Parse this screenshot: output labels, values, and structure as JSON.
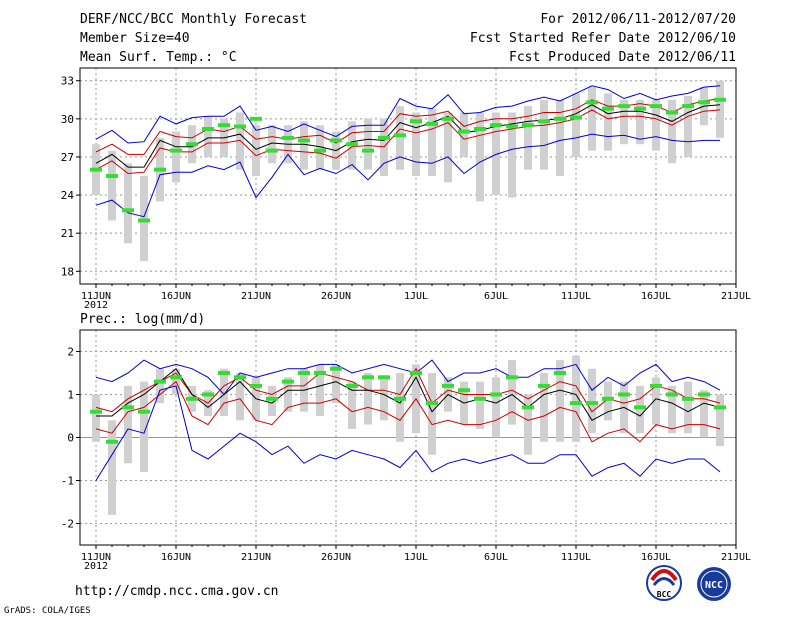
{
  "header": {
    "title": "DERF/NCC/BCC Monthly Forecast",
    "member_size": "Member Size=40",
    "variable": "Mean Surf. Temp.: °C",
    "period": "For 2012/06/11-2012/07/20",
    "start_date": "Fcst Started Refer Date 2012/06/10",
    "produced_date": "Fcst Produced Date 2012/06/11"
  },
  "x_ticks": [
    "11JUN",
    "16JUN",
    "21JUN",
    "26JUN",
    "1JUL",
    "6JUL",
    "11JUL",
    "16JUL",
    "21JUL"
  ],
  "x_year": "2012",
  "footer": {
    "url": "http://cmdp.ncc.cma.gov.cn",
    "credit": "GrADS: COLA/IGES",
    "logo_bcc": "BCC",
    "logo_ncc": "NCC"
  },
  "colors": {
    "upper_lower": "#0000cc",
    "spread": "#cc0000",
    "mean": "#000000",
    "box": "#d0d0d0",
    "median": "#33dd33"
  },
  "chart_data": [
    {
      "type": "line",
      "title": "Mean Surf. Temp.: °C",
      "xlabel": "",
      "ylabel": "",
      "ylim": [
        17,
        34
      ],
      "yticks": [
        18,
        21,
        24,
        27,
        30,
        33
      ],
      "days": 40,
      "grid": true,
      "series": [
        {
          "name": "upper",
          "values": [
            28.4,
            29.1,
            28.1,
            28.2,
            30.2,
            29.6,
            30.1,
            30.2,
            30.2,
            31.0,
            29.1,
            29.4,
            29.0,
            29.6,
            29.1,
            28.6,
            29.4,
            29.5,
            29.5,
            31.6,
            31.0,
            30.8,
            31.9,
            30.4,
            30.5,
            30.9,
            31.0,
            31.4,
            31.7,
            31.4,
            32.0,
            32.6,
            32.3,
            31.6,
            32.0,
            31.5,
            31.8,
            32.0,
            32.5,
            32.6
          ]
        },
        {
          "name": "spread_high",
          "values": [
            27.4,
            28.0,
            27.2,
            27.2,
            29.0,
            28.6,
            28.5,
            29.2,
            29.0,
            29.4,
            28.4,
            28.6,
            28.4,
            28.6,
            28.7,
            28.1,
            28.9,
            29.0,
            29.0,
            30.4,
            30.2,
            30.3,
            30.6,
            29.4,
            29.8,
            30.0,
            30.0,
            30.2,
            30.5,
            30.5,
            30.8,
            31.5,
            31.0,
            31.0,
            31.2,
            31.0,
            30.5,
            31.1,
            31.4,
            31.6
          ]
        },
        {
          "name": "mean",
          "values": [
            26.5,
            27.2,
            26.2,
            26.2,
            28.3,
            27.8,
            27.8,
            28.5,
            28.5,
            28.8,
            27.6,
            28.1,
            28.0,
            28.0,
            27.8,
            27.5,
            28.2,
            28.4,
            28.3,
            29.7,
            29.3,
            29.7,
            30.2,
            28.9,
            29.1,
            29.4,
            29.6,
            29.8,
            29.9,
            30.0,
            30.4,
            31.1,
            30.4,
            30.6,
            30.6,
            30.3,
            29.8,
            30.5,
            31.0,
            31.1
          ]
        },
        {
          "name": "spread_low",
          "values": [
            26.0,
            26.7,
            25.7,
            25.8,
            27.7,
            27.4,
            27.4,
            28.1,
            28.1,
            28.3,
            27.1,
            27.6,
            27.5,
            27.4,
            27.3,
            26.9,
            27.8,
            27.9,
            27.8,
            29.2,
            28.9,
            29.2,
            29.7,
            28.4,
            28.7,
            29.0,
            29.2,
            29.4,
            29.5,
            29.7,
            30.0,
            30.7,
            30.0,
            30.2,
            30.2,
            30.0,
            29.5,
            30.2,
            30.6,
            30.7
          ]
        },
        {
          "name": "lower",
          "values": [
            23.2,
            23.6,
            22.6,
            22.3,
            25.6,
            25.8,
            25.8,
            26.3,
            26.0,
            26.6,
            23.8,
            25.4,
            27.2,
            25.6,
            26.1,
            25.7,
            26.4,
            25.2,
            26.5,
            27.0,
            26.6,
            26.5,
            27.0,
            25.7,
            26.6,
            27.2,
            27.6,
            27.8,
            27.9,
            28.3,
            28.5,
            28.8,
            28.6,
            28.7,
            28.4,
            28.6,
            28.3,
            28.2,
            28.3,
            28.3
          ]
        }
      ],
      "boxes": [
        [
          24.0,
          28.0
        ],
        [
          22.0,
          27.5
        ],
        [
          20.2,
          26.5
        ],
        [
          18.8,
          25.5
        ],
        [
          23.5,
          28.5
        ],
        [
          25.0,
          29.0
        ],
        [
          26.5,
          29.5
        ],
        [
          27.0,
          30.2
        ],
        [
          27.0,
          30.0
        ],
        [
          26.0,
          30.5
        ],
        [
          25.5,
          29.5
        ],
        [
          26.5,
          29.5
        ],
        [
          26.5,
          29.5
        ],
        [
          26.0,
          29.8
        ],
        [
          26.0,
          29.5
        ],
        [
          26.0,
          29.0
        ],
        [
          26.0,
          29.8
        ],
        [
          26.0,
          30.0
        ],
        [
          25.5,
          30.0
        ],
        [
          26.0,
          31.0
        ],
        [
          25.5,
          30.5
        ],
        [
          25.5,
          30.8
        ],
        [
          25.0,
          30.5
        ],
        [
          27.0,
          30.5
        ],
        [
          23.5,
          30.5
        ],
        [
          24.0,
          30.5
        ],
        [
          23.8,
          30.5
        ],
        [
          26.0,
          31.0
        ],
        [
          26.0,
          31.5
        ],
        [
          25.5,
          31.5
        ],
        [
          27.0,
          32.0
        ],
        [
          27.5,
          32.5
        ],
        [
          27.5,
          32.0
        ],
        [
          28.0,
          31.5
        ],
        [
          28.0,
          31.5
        ],
        [
          27.5,
          31.5
        ],
        [
          26.5,
          31.5
        ],
        [
          27.0,
          31.8
        ],
        [
          29.5,
          32.5
        ],
        [
          28.5,
          33.0
        ]
      ],
      "medians": [
        26.0,
        25.5,
        22.8,
        22.0,
        26.0,
        27.5,
        28.0,
        29.2,
        29.5,
        29.4,
        30.0,
        27.5,
        28.5,
        28.3,
        27.5,
        28.3,
        28.0,
        27.5,
        28.5,
        28.7,
        29.8,
        29.6,
        30.0,
        29.0,
        29.2,
        29.5,
        29.4,
        29.5,
        29.8,
        30.0,
        30.1,
        31.3,
        30.8,
        31.0,
        30.8,
        31.0,
        30.5,
        31.0,
        31.3,
        31.5
      ]
    },
    {
      "type": "line",
      "title": "Prec.: log(mm/d)",
      "xlabel": "",
      "ylabel": "",
      "ylim": [
        -2.5,
        2.5
      ],
      "yticks": [
        -2,
        -1,
        0,
        1,
        2
      ],
      "days": 40,
      "grid": true,
      "series": [
        {
          "name": "upper",
          "values": [
            1.4,
            1.3,
            1.5,
            1.8,
            1.6,
            1.7,
            1.6,
            1.4,
            1.0,
            1.5,
            1.4,
            1.5,
            1.6,
            1.6,
            1.7,
            1.7,
            1.5,
            1.6,
            1.7,
            1.6,
            1.5,
            1.8,
            1.3,
            1.5,
            1.5,
            1.6,
            1.4,
            1.4,
            1.6,
            1.6,
            1.7,
            1.1,
            1.4,
            1.2,
            1.5,
            1.7,
            1.3,
            1.4,
            1.3,
            1.1
          ]
        },
        {
          "name": "spread_high",
          "values": [
            0.7,
            0.6,
            0.9,
            1.1,
            1.3,
            1.5,
            1.0,
            0.8,
            1.2,
            1.4,
            1.1,
            1.0,
            1.2,
            1.2,
            1.5,
            1.4,
            1.3,
            1.1,
            1.1,
            1.0,
            1.6,
            0.8,
            1.1,
            1.0,
            1.0,
            1.0,
            1.1,
            0.9,
            1.1,
            1.3,
            1.2,
            0.6,
            0.9,
            0.8,
            0.9,
            1.2,
            1.1,
            0.9,
            0.9,
            0.8
          ]
        },
        {
          "name": "mean",
          "values": [
            0.5,
            0.5,
            0.8,
            1.0,
            1.3,
            1.6,
            1.0,
            0.7,
            1.0,
            1.3,
            0.9,
            0.8,
            1.1,
            1.1,
            1.2,
            1.3,
            1.1,
            1.1,
            1.0,
            0.8,
            1.4,
            0.6,
            1.0,
            0.8,
            0.9,
            0.8,
            1.0,
            0.7,
            1.0,
            1.1,
            1.0,
            0.4,
            0.6,
            0.7,
            0.5,
            0.9,
            0.8,
            0.6,
            0.8,
            0.7
          ]
        },
        {
          "name": "spread_low",
          "values": [
            0.2,
            0.1,
            0.6,
            0.7,
            1.0,
            1.3,
            0.5,
            0.3,
            0.8,
            0.9,
            0.4,
            0.3,
            0.7,
            0.8,
            0.8,
            0.9,
            0.6,
            0.7,
            0.6,
            0.4,
            0.9,
            0.3,
            0.4,
            0.3,
            0.3,
            0.4,
            0.6,
            0.4,
            0.5,
            0.7,
            0.6,
            -0.1,
            0.1,
            0.2,
            -0.1,
            0.3,
            0.2,
            0.3,
            0.3,
            0.2
          ]
        },
        {
          "name": "lower",
          "values": [
            -1.0,
            -0.4,
            0.2,
            0.1,
            1.1,
            1.2,
            -0.3,
            -0.5,
            -0.2,
            0.1,
            -0.1,
            -0.4,
            -0.2,
            -0.6,
            -0.4,
            -0.5,
            -0.3,
            -0.4,
            -0.5,
            -0.7,
            -0.3,
            -0.8,
            -0.6,
            -0.5,
            -0.6,
            -0.5,
            -0.4,
            -0.6,
            -0.6,
            -0.4,
            -0.4,
            -0.9,
            -0.7,
            -0.6,
            -0.9,
            -0.5,
            -0.6,
            -0.5,
            -0.5,
            -0.8
          ]
        }
      ],
      "boxes": [
        [
          -0.1,
          1.0
        ],
        [
          -1.8,
          0.4
        ],
        [
          -0.6,
          1.2
        ],
        [
          -0.8,
          1.3
        ],
        [
          0.8,
          1.6
        ],
        [
          1.0,
          1.6
        ],
        [
          0.6,
          1.2
        ],
        [
          0.5,
          1.1
        ],
        [
          0.5,
          1.6
        ],
        [
          0.4,
          1.5
        ],
        [
          0.4,
          1.4
        ],
        [
          0.5,
          1.2
        ],
        [
          0.6,
          1.4
        ],
        [
          0.6,
          1.6
        ],
        [
          0.5,
          1.7
        ],
        [
          0.8,
          1.7
        ],
        [
          0.2,
          1.3
        ],
        [
          0.3,
          1.5
        ],
        [
          0.4,
          1.4
        ],
        [
          -0.1,
          1.5
        ],
        [
          0.1,
          1.7
        ],
        [
          -0.4,
          1.5
        ],
        [
          0.6,
          1.4
        ],
        [
          0.3,
          1.3
        ],
        [
          0.2,
          1.3
        ],
        [
          0.0,
          1.4
        ],
        [
          0.3,
          1.8
        ],
        [
          -0.4,
          1.0
        ],
        [
          -0.1,
          1.5
        ],
        [
          -0.1,
          1.8
        ],
        [
          -0.1,
          1.9
        ],
        [
          0.1,
          1.6
        ],
        [
          0.4,
          1.3
        ],
        [
          0.1,
          1.3
        ],
        [
          0.1,
          1.2
        ],
        [
          0.3,
          1.4
        ],
        [
          0.1,
          1.2
        ],
        [
          0.1,
          1.3
        ],
        [
          0.0,
          1.1
        ],
        [
          -0.2,
          1.0
        ]
      ],
      "medians": [
        0.6,
        -0.1,
        0.7,
        0.6,
        1.3,
        1.4,
        0.9,
        1.0,
        1.5,
        1.4,
        1.2,
        0.9,
        1.3,
        1.5,
        1.5,
        1.6,
        1.2,
        1.4,
        1.4,
        0.9,
        1.5,
        0.8,
        1.2,
        1.1,
        0.9,
        1.0,
        1.4,
        0.7,
        1.2,
        1.5,
        0.8,
        0.8,
        0.9,
        1.0,
        0.7,
        1.2,
        1.0,
        0.9,
        1.0,
        0.7
      ]
    }
  ]
}
